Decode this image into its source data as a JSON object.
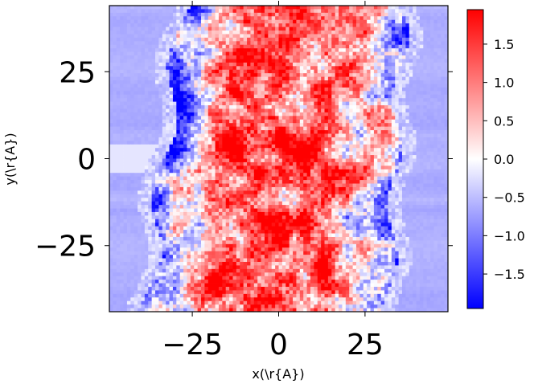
{
  "chart_data": {
    "type": "heatmap",
    "title": "",
    "xlabel": "x(\\r{A})",
    "ylabel": "y(\\r{A})",
    "xlim": [
      -49,
      49
    ],
    "ylim": [
      -44,
      44
    ],
    "x_ticks": [
      -25,
      0,
      25
    ],
    "y_ticks": [
      -25,
      0,
      25
    ],
    "x_tick_labels": [
      "−25",
      "0",
      "25"
    ],
    "y_tick_labels": [
      "−25",
      "0",
      "25"
    ],
    "colormap": "bwr",
    "colorbar": {
      "range": [
        -1.95,
        1.95
      ],
      "ticks": [
        1.5,
        1.0,
        0.5,
        0.0,
        -0.5,
        -1.0,
        -1.5
      ],
      "tick_labels": [
        "1.5",
        "1.0",
        "0.5",
        "0.0",
        "−0.5",
        "−1.0",
        "−1.5"
      ]
    },
    "low_color": "#0000ff",
    "mid_color": "#ffffff",
    "high_color": "#ff0000",
    "pattern": "noisy field of mostly positive (red) values concentrated in the slab, blue patches toward the slab edges, uniform faint blue background outside"
  }
}
